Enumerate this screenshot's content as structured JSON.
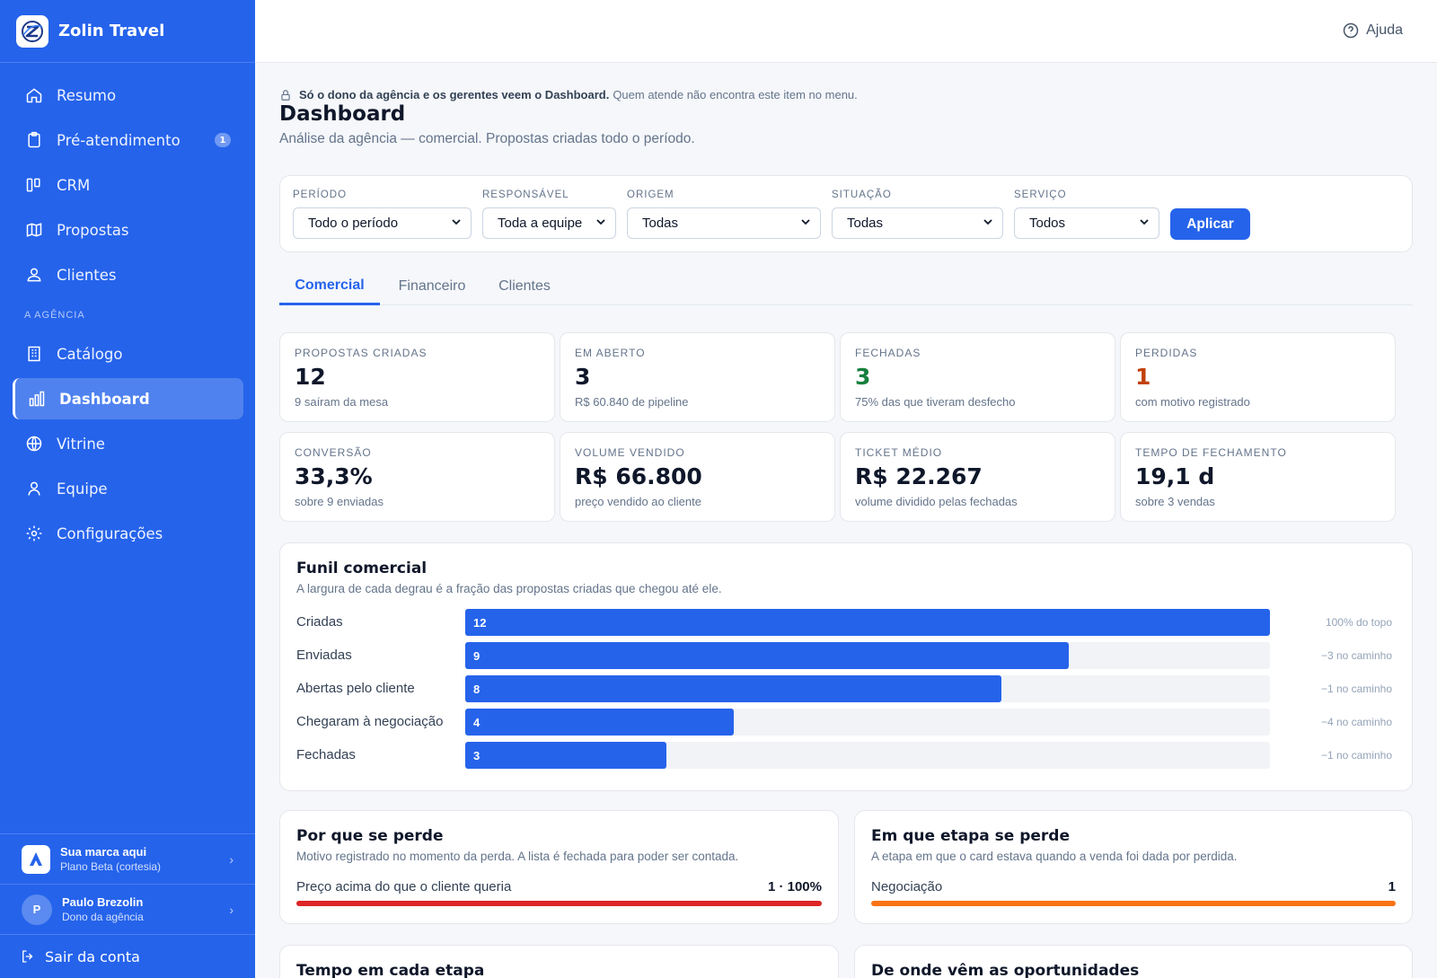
{
  "app": {
    "name": "Zolin Travel"
  },
  "sidebar": {
    "items": [
      {
        "label": "Resumo",
        "icon": "home-icon"
      },
      {
        "label": "Pré-atendimento",
        "icon": "clipboard-icon",
        "badge": "1"
      },
      {
        "label": "CRM",
        "icon": "kanban-icon"
      },
      {
        "label": "Propostas",
        "icon": "map-icon"
      },
      {
        "label": "Clientes",
        "icon": "users-icon"
      }
    ],
    "section_label": "A AGÊNCIA",
    "agency_items": [
      {
        "label": "Catálogo",
        "icon": "building-icon"
      },
      {
        "label": "Dashboard",
        "icon": "chart-icon",
        "active": true
      },
      {
        "label": "Vitrine",
        "icon": "globe-icon"
      },
      {
        "label": "Equipe",
        "icon": "user-icon"
      },
      {
        "label": "Configurações",
        "icon": "gear-icon"
      }
    ],
    "brand_account": {
      "title": "Sua marca aqui",
      "subtitle": "Plano Beta (cortesia)"
    },
    "user": {
      "initial": "P",
      "name": "Paulo Brezolin",
      "role": "Dono da agência"
    },
    "logout_label": "Sair da conta"
  },
  "topbar": {
    "help_label": "Ajuda"
  },
  "page": {
    "notice_bold": "Só o dono da agência e os gerentes veem o Dashboard.",
    "notice_rest": "Quem atende não encontra este item no menu.",
    "title": "Dashboard",
    "subtitle": "Análise da agência — comercial. Propostas criadas todo o período."
  },
  "filters": {
    "periodo": {
      "label": "PERÍODO",
      "value": "Todo o período"
    },
    "responsavel": {
      "label": "RESPONSÁVEL",
      "value": "Toda a equipe"
    },
    "origem": {
      "label": "ORIGEM",
      "value": "Todas"
    },
    "situacao": {
      "label": "SITUAÇÃO",
      "value": "Todas"
    },
    "servico": {
      "label": "SERVIÇO",
      "value": "Todos"
    },
    "apply_label": "Aplicar"
  },
  "tabs": [
    "Comercial",
    "Financeiro",
    "Clientes"
  ],
  "kpis": [
    {
      "label": "PROPOSTAS CRIADAS",
      "value": "12",
      "sub": "9 saíram da mesa",
      "color": "#0f172a"
    },
    {
      "label": "EM ABERTO",
      "value": "3",
      "sub": "R$ 60.840 de pipeline",
      "color": "#0f172a"
    },
    {
      "label": "FECHADAS",
      "value": "3",
      "sub": "75% das que tiveram desfecho",
      "color": "#15803d"
    },
    {
      "label": "PERDIDAS",
      "value": "1",
      "sub": "com motivo registrado",
      "color": "#c2410c"
    },
    {
      "label": "CONVERSÃO",
      "value": "33,3%",
      "sub": "sobre 9 enviadas",
      "color": "#0f172a"
    },
    {
      "label": "VOLUME VENDIDO",
      "value": "R$ 66.800",
      "sub": "preço vendido ao cliente",
      "color": "#0f172a"
    },
    {
      "label": "TICKET MÉDIO",
      "value": "R$ 22.267",
      "sub": "volume dividido pelas fechadas",
      "color": "#0f172a"
    },
    {
      "label": "TEMPO DE FECHAMENTO",
      "value": "19,1 d",
      "sub": "sobre 3 vendas",
      "color": "#0f172a"
    }
  ],
  "chart_data": {
    "type": "bar",
    "title": "Funil comercial",
    "subtitle": "A largura de cada degrau é a fração das propostas criadas que chegou até ele.",
    "categories": [
      "Criadas",
      "Enviadas",
      "Abertas pelo cliente",
      "Chegaram à negociação",
      "Fechadas"
    ],
    "values": [
      12,
      9,
      8,
      4,
      3
    ],
    "notes": [
      "100% do topo",
      "−3 no caminho",
      "−1 no caminho",
      "−4 no caminho",
      "−1 no caminho"
    ],
    "max": 12,
    "bar_color": "#2563eb"
  },
  "loss_reasons": {
    "title": "Por que se perde",
    "subtitle": "Motivo registrado no momento da perda. A lista é fechada para poder ser contada.",
    "rows": [
      {
        "label": "Preço acima do que o cliente queria",
        "value": "1 · 100%",
        "share": 1.0,
        "color": "#dc2626"
      }
    ]
  },
  "loss_stages": {
    "title": "Em que etapa se perde",
    "subtitle": "A etapa em que o card estava quando a venda foi dada por perdida.",
    "rows": [
      {
        "label": "Negociação",
        "value": "1",
        "share": 1.0,
        "color": "#f97316"
      }
    ]
  },
  "stage_time": {
    "title": "Tempo em cada etapa"
  },
  "origins": {
    "title": "De onde vêm as oportunidades"
  }
}
